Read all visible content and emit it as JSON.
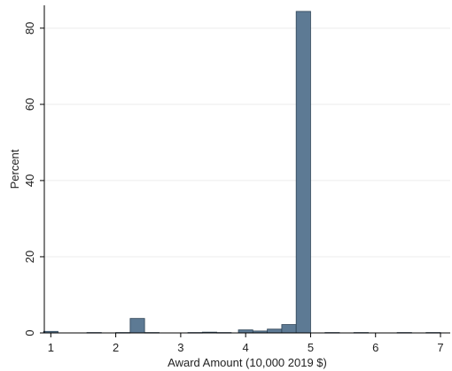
{
  "chart_data": {
    "type": "bar",
    "title": "",
    "xlabel": "Award Amount (10,000 2019 $)",
    "ylabel": "Percent",
    "xlim": [
      0.9,
      7.15
    ],
    "ylim": [
      0,
      86
    ],
    "x_ticks": [
      "1",
      "2",
      "3",
      "4",
      "5",
      "6",
      "7"
    ],
    "y_ticks": [
      "0",
      "20",
      "40",
      "60",
      "80"
    ],
    "grid": true,
    "bar_width": 0.222,
    "bar_color": "#5d7a94",
    "bar_edge_color": "#2e4457",
    "bars": [
      {
        "x": 1.0,
        "value": 0.4
      },
      {
        "x": 1.667,
        "value": 0.1
      },
      {
        "x": 2.111,
        "value": 0.1
      },
      {
        "x": 2.333,
        "value": 3.8
      },
      {
        "x": 2.556,
        "value": 0.1
      },
      {
        "x": 3.222,
        "value": 0.1
      },
      {
        "x": 3.444,
        "value": 0.2
      },
      {
        "x": 3.667,
        "value": 0.1
      },
      {
        "x": 4.0,
        "value": 0.8
      },
      {
        "x": 4.222,
        "value": 0.5
      },
      {
        "x": 4.444,
        "value": 1.0
      },
      {
        "x": 4.667,
        "value": 2.2
      },
      {
        "x": 4.889,
        "value": 84.4
      },
      {
        "x": 5.333,
        "value": 0.1
      },
      {
        "x": 5.778,
        "value": 0.1
      },
      {
        "x": 6.444,
        "value": 0.1
      },
      {
        "x": 6.889,
        "value": 0.1
      }
    ]
  }
}
